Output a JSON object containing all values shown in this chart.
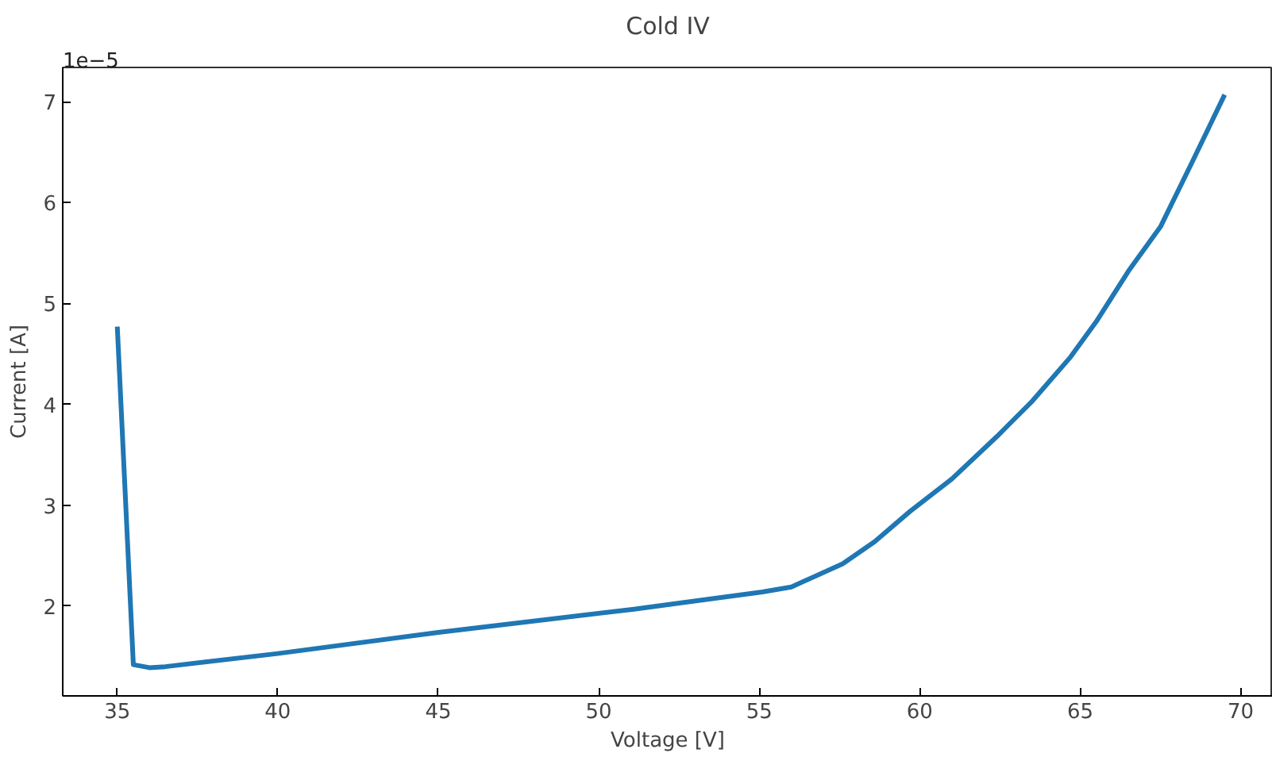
{
  "chart_data": {
    "type": "line",
    "title": "Cold IV",
    "xlabel": "Voltage [V]",
    "ylabel": "Current [A]",
    "annotations": [
      "1e−5"
    ],
    "x": [
      35.0,
      35.5,
      36.0,
      36.5,
      40.0,
      45.0,
      51.1,
      55.1,
      56.0,
      57.6,
      58.6,
      59.7,
      61.0,
      62.4,
      63.5,
      64.7,
      65.5,
      66.5,
      67.5,
      68.5,
      69.5
    ],
    "series": [
      {
        "color": "#1f77b4",
        "values": [
          4.77,
          1.42,
          1.39,
          1.4,
          1.53,
          1.74,
          1.97,
          2.14,
          2.19,
          2.42,
          2.64,
          2.94,
          3.26,
          3.68,
          4.03,
          4.47,
          4.82,
          5.32,
          5.76,
          6.41,
          7.07
        ]
      }
    ],
    "xlim": [
      33.3,
      71.0
    ],
    "ylim": [
      1.11,
      7.34
    ],
    "xticks": [
      35,
      40,
      45,
      50,
      55,
      60,
      65,
      70
    ],
    "yticks": [
      2,
      3,
      4,
      5,
      6,
      7
    ],
    "grid": false,
    "line_style": "solid",
    "marker": "none"
  }
}
